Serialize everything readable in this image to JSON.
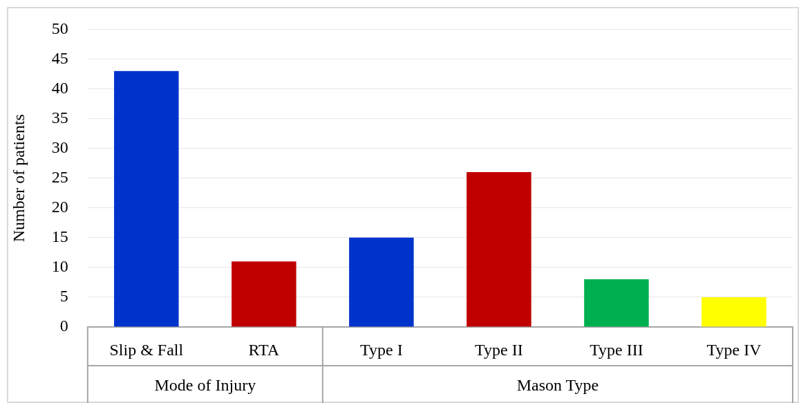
{
  "chart_data": {
    "type": "bar",
    "ylabel": "Number of patients",
    "categories": [
      "Slip & Fall",
      "RTA",
      "Type I",
      "Type II",
      "Type III",
      "Type IV"
    ],
    "values": [
      43,
      11,
      15,
      26,
      8,
      5
    ],
    "colors": [
      "#0033cc",
      "#c00000",
      "#0033cc",
      "#c00000",
      "#00b050",
      "#ffff00"
    ],
    "ylim": [
      0,
      50
    ],
    "yticks": [
      0,
      5,
      10,
      15,
      20,
      25,
      30,
      35,
      40,
      45,
      50
    ],
    "grid": "y",
    "legend": false,
    "annotations": [
      "Mode of Injury",
      "Mason Type"
    ]
  }
}
